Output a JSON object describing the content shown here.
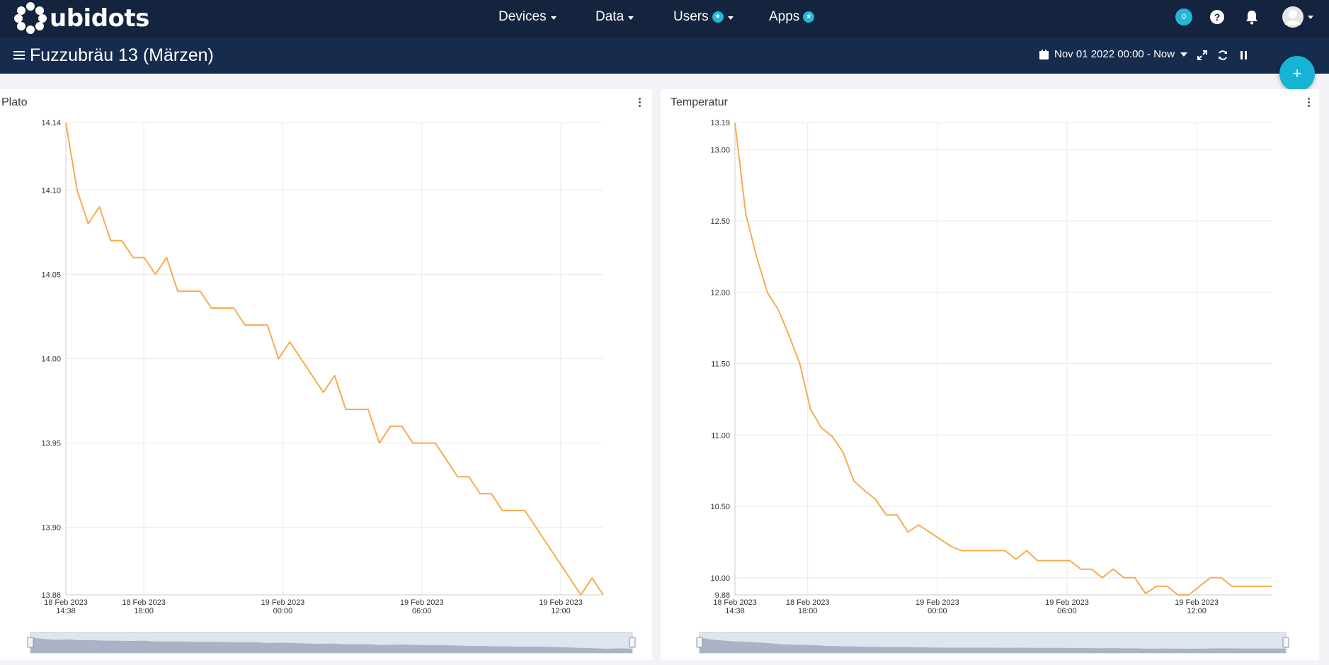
{
  "brand": {
    "name": "ubidots"
  },
  "nav": {
    "devices": "Devices",
    "data": "Data",
    "users": "Users",
    "apps": "Apps"
  },
  "header": {
    "notification_count": "0"
  },
  "dashboard": {
    "title": "Fuzzubräu 13 (Märzen)",
    "date_range": "Nov 01 2022 00:00 - Now"
  },
  "fab": {
    "label": "+"
  },
  "colors": {
    "topbar": "#14233e",
    "subbar": "#172b4d",
    "accent": "#16b3d4",
    "line": "#f5ac4f"
  },
  "icons": [
    "menu-icon",
    "calendar-icon",
    "expand-icon",
    "refresh-icon",
    "pause-icon",
    "help-icon",
    "bell-icon",
    "user-avatar-icon",
    "kebab-icon"
  ],
  "chart_data": [
    {
      "type": "line",
      "title": "Plato",
      "ylim": [
        13.86,
        14.14
      ],
      "yticks": [
        "14.14",
        "14.10",
        "14.05",
        "14.00",
        "13.95",
        "13.90",
        "13.86"
      ],
      "ytick_values": [
        14.14,
        14.1,
        14.05,
        14.0,
        13.95,
        13.9,
        13.86
      ],
      "xlim": [
        "2023-02-18 14:38",
        "2023-02-19 13:50"
      ],
      "xticks": [
        {
          "at": "2023-02-18 14:38",
          "l1": "18 Feb 2023",
          "l2": "14:38"
        },
        {
          "at": "2023-02-18 18:00",
          "l1": "18 Feb 2023",
          "l2": "18:00"
        },
        {
          "at": "2023-02-19 00:00",
          "l1": "19 Feb 2023",
          "l2": "00:00"
        },
        {
          "at": "2023-02-19 06:00",
          "l1": "19 Feb 2023",
          "l2": "06:00"
        },
        {
          "at": "2023-02-19 12:00",
          "l1": "19 Feb 2023",
          "l2": "12:00"
        }
      ],
      "series": [
        {
          "x": [
            "2023-02-18 14:38",
            "2023-02-18 15:07",
            "2023-02-18 15:36",
            "2023-02-18 16:05",
            "2023-02-18 16:34",
            "2023-02-18 17:03",
            "2023-02-18 17:32",
            "2023-02-18 18:01",
            "2023-02-18 18:30",
            "2023-02-18 18:59",
            "2023-02-18 19:28",
            "2023-02-18 19:57",
            "2023-02-18 20:26",
            "2023-02-18 20:55",
            "2023-02-18 21:24",
            "2023-02-18 21:53",
            "2023-02-18 22:22",
            "2023-02-18 22:51",
            "2023-02-18 23:20",
            "2023-02-18 23:49",
            "2023-02-19 00:18",
            "2023-02-19 00:47",
            "2023-02-19 01:16",
            "2023-02-19 01:45",
            "2023-02-19 02:14",
            "2023-02-19 02:43",
            "2023-02-19 03:12",
            "2023-02-19 03:41",
            "2023-02-19 04:10",
            "2023-02-19 04:39",
            "2023-02-19 05:08",
            "2023-02-19 05:37",
            "2023-02-19 06:06",
            "2023-02-19 06:35",
            "2023-02-19 07:04",
            "2023-02-19 07:33",
            "2023-02-19 08:02",
            "2023-02-19 08:31",
            "2023-02-19 09:00",
            "2023-02-19 09:29",
            "2023-02-19 09:58",
            "2023-02-19 10:27",
            "2023-02-19 10:56",
            "2023-02-19 11:25",
            "2023-02-19 11:54",
            "2023-02-19 12:23",
            "2023-02-19 12:52",
            "2023-02-19 13:21",
            "2023-02-19 13:50"
          ],
          "y": [
            14.14,
            14.1,
            14.08,
            14.09,
            14.07,
            14.07,
            14.06,
            14.06,
            14.05,
            14.06,
            14.04,
            14.04,
            14.04,
            14.03,
            14.03,
            14.03,
            14.02,
            14.02,
            14.02,
            14.0,
            14.01,
            14.0,
            13.99,
            13.98,
            13.99,
            13.97,
            13.97,
            13.97,
            13.95,
            13.96,
            13.96,
            13.95,
            13.95,
            13.95,
            13.94,
            13.93,
            13.93,
            13.92,
            13.92,
            13.91,
            13.91,
            13.91,
            13.9,
            13.89,
            13.88,
            13.87,
            13.86,
            13.87,
            13.86
          ]
        }
      ]
    },
    {
      "type": "line",
      "title": "Temperatur",
      "ylim": [
        9.88,
        13.19
      ],
      "yticks": [
        "13.19",
        "13.00",
        "12.50",
        "12.00",
        "11.50",
        "11.00",
        "10.50",
        "10.00",
        "9.88"
      ],
      "ytick_values": [
        13.19,
        13.0,
        12.5,
        12.0,
        11.5,
        11.0,
        10.5,
        10.0,
        9.88
      ],
      "xlim": [
        "2023-02-18 14:38",
        "2023-02-19 15:30"
      ],
      "xticks": [
        {
          "at": "2023-02-18 14:38",
          "l1": "18 Feb 2023",
          "l2": "14:38"
        },
        {
          "at": "2023-02-18 18:00",
          "l1": "18 Feb 2023",
          "l2": "18:00"
        },
        {
          "at": "2023-02-19 00:00",
          "l1": "19 Feb 2023",
          "l2": "00:00"
        },
        {
          "at": "2023-02-19 06:00",
          "l1": "19 Feb 2023",
          "l2": "06:00"
        },
        {
          "at": "2023-02-19 12:00",
          "l1": "19 Feb 2023",
          "l2": "12:00"
        }
      ],
      "series": [
        {
          "x": [
            "2023-02-18 14:38",
            "2023-02-18 15:08",
            "2023-02-18 15:38",
            "2023-02-18 16:08",
            "2023-02-18 16:38",
            "2023-02-18 17:08",
            "2023-02-18 17:38",
            "2023-02-18 18:08",
            "2023-02-18 18:38",
            "2023-02-18 19:08",
            "2023-02-18 19:38",
            "2023-02-18 20:08",
            "2023-02-18 20:38",
            "2023-02-18 21:08",
            "2023-02-18 21:38",
            "2023-02-18 22:08",
            "2023-02-18 22:38",
            "2023-02-18 23:08",
            "2023-02-18 23:38",
            "2023-02-19 00:08",
            "2023-02-19 00:38",
            "2023-02-19 01:08",
            "2023-02-19 01:38",
            "2023-02-19 02:08",
            "2023-02-19 02:38",
            "2023-02-19 03:08",
            "2023-02-19 03:38",
            "2023-02-19 04:08",
            "2023-02-19 04:38",
            "2023-02-19 05:08",
            "2023-02-19 05:38",
            "2023-02-19 06:08",
            "2023-02-19 06:38",
            "2023-02-19 07:08",
            "2023-02-19 07:38",
            "2023-02-19 08:08",
            "2023-02-19 08:38",
            "2023-02-19 09:08",
            "2023-02-19 09:38",
            "2023-02-19 10:08",
            "2023-02-19 10:38",
            "2023-02-19 11:08",
            "2023-02-19 11:38",
            "2023-02-19 12:08",
            "2023-02-19 12:38",
            "2023-02-19 13:08",
            "2023-02-19 13:38",
            "2023-02-19 14:08",
            "2023-02-19 14:38",
            "2023-02-19 15:08",
            "2023-02-19 15:30"
          ],
          "y": [
            13.19,
            12.55,
            12.25,
            12.0,
            11.88,
            11.7,
            11.5,
            11.18,
            11.05,
            10.99,
            10.88,
            10.68,
            10.61,
            10.55,
            10.44,
            10.44,
            10.32,
            10.37,
            10.32,
            10.27,
            10.22,
            10.19,
            10.19,
            10.19,
            10.19,
            10.19,
            10.13,
            10.19,
            10.12,
            10.12,
            10.12,
            10.12,
            10.06,
            10.06,
            10.0,
            10.06,
            10.0,
            10.0,
            9.89,
            9.94,
            9.94,
            9.88,
            9.88,
            9.94,
            10.0,
            10.0,
            9.94,
            9.94,
            9.94,
            9.94,
            9.94
          ]
        }
      ]
    }
  ]
}
